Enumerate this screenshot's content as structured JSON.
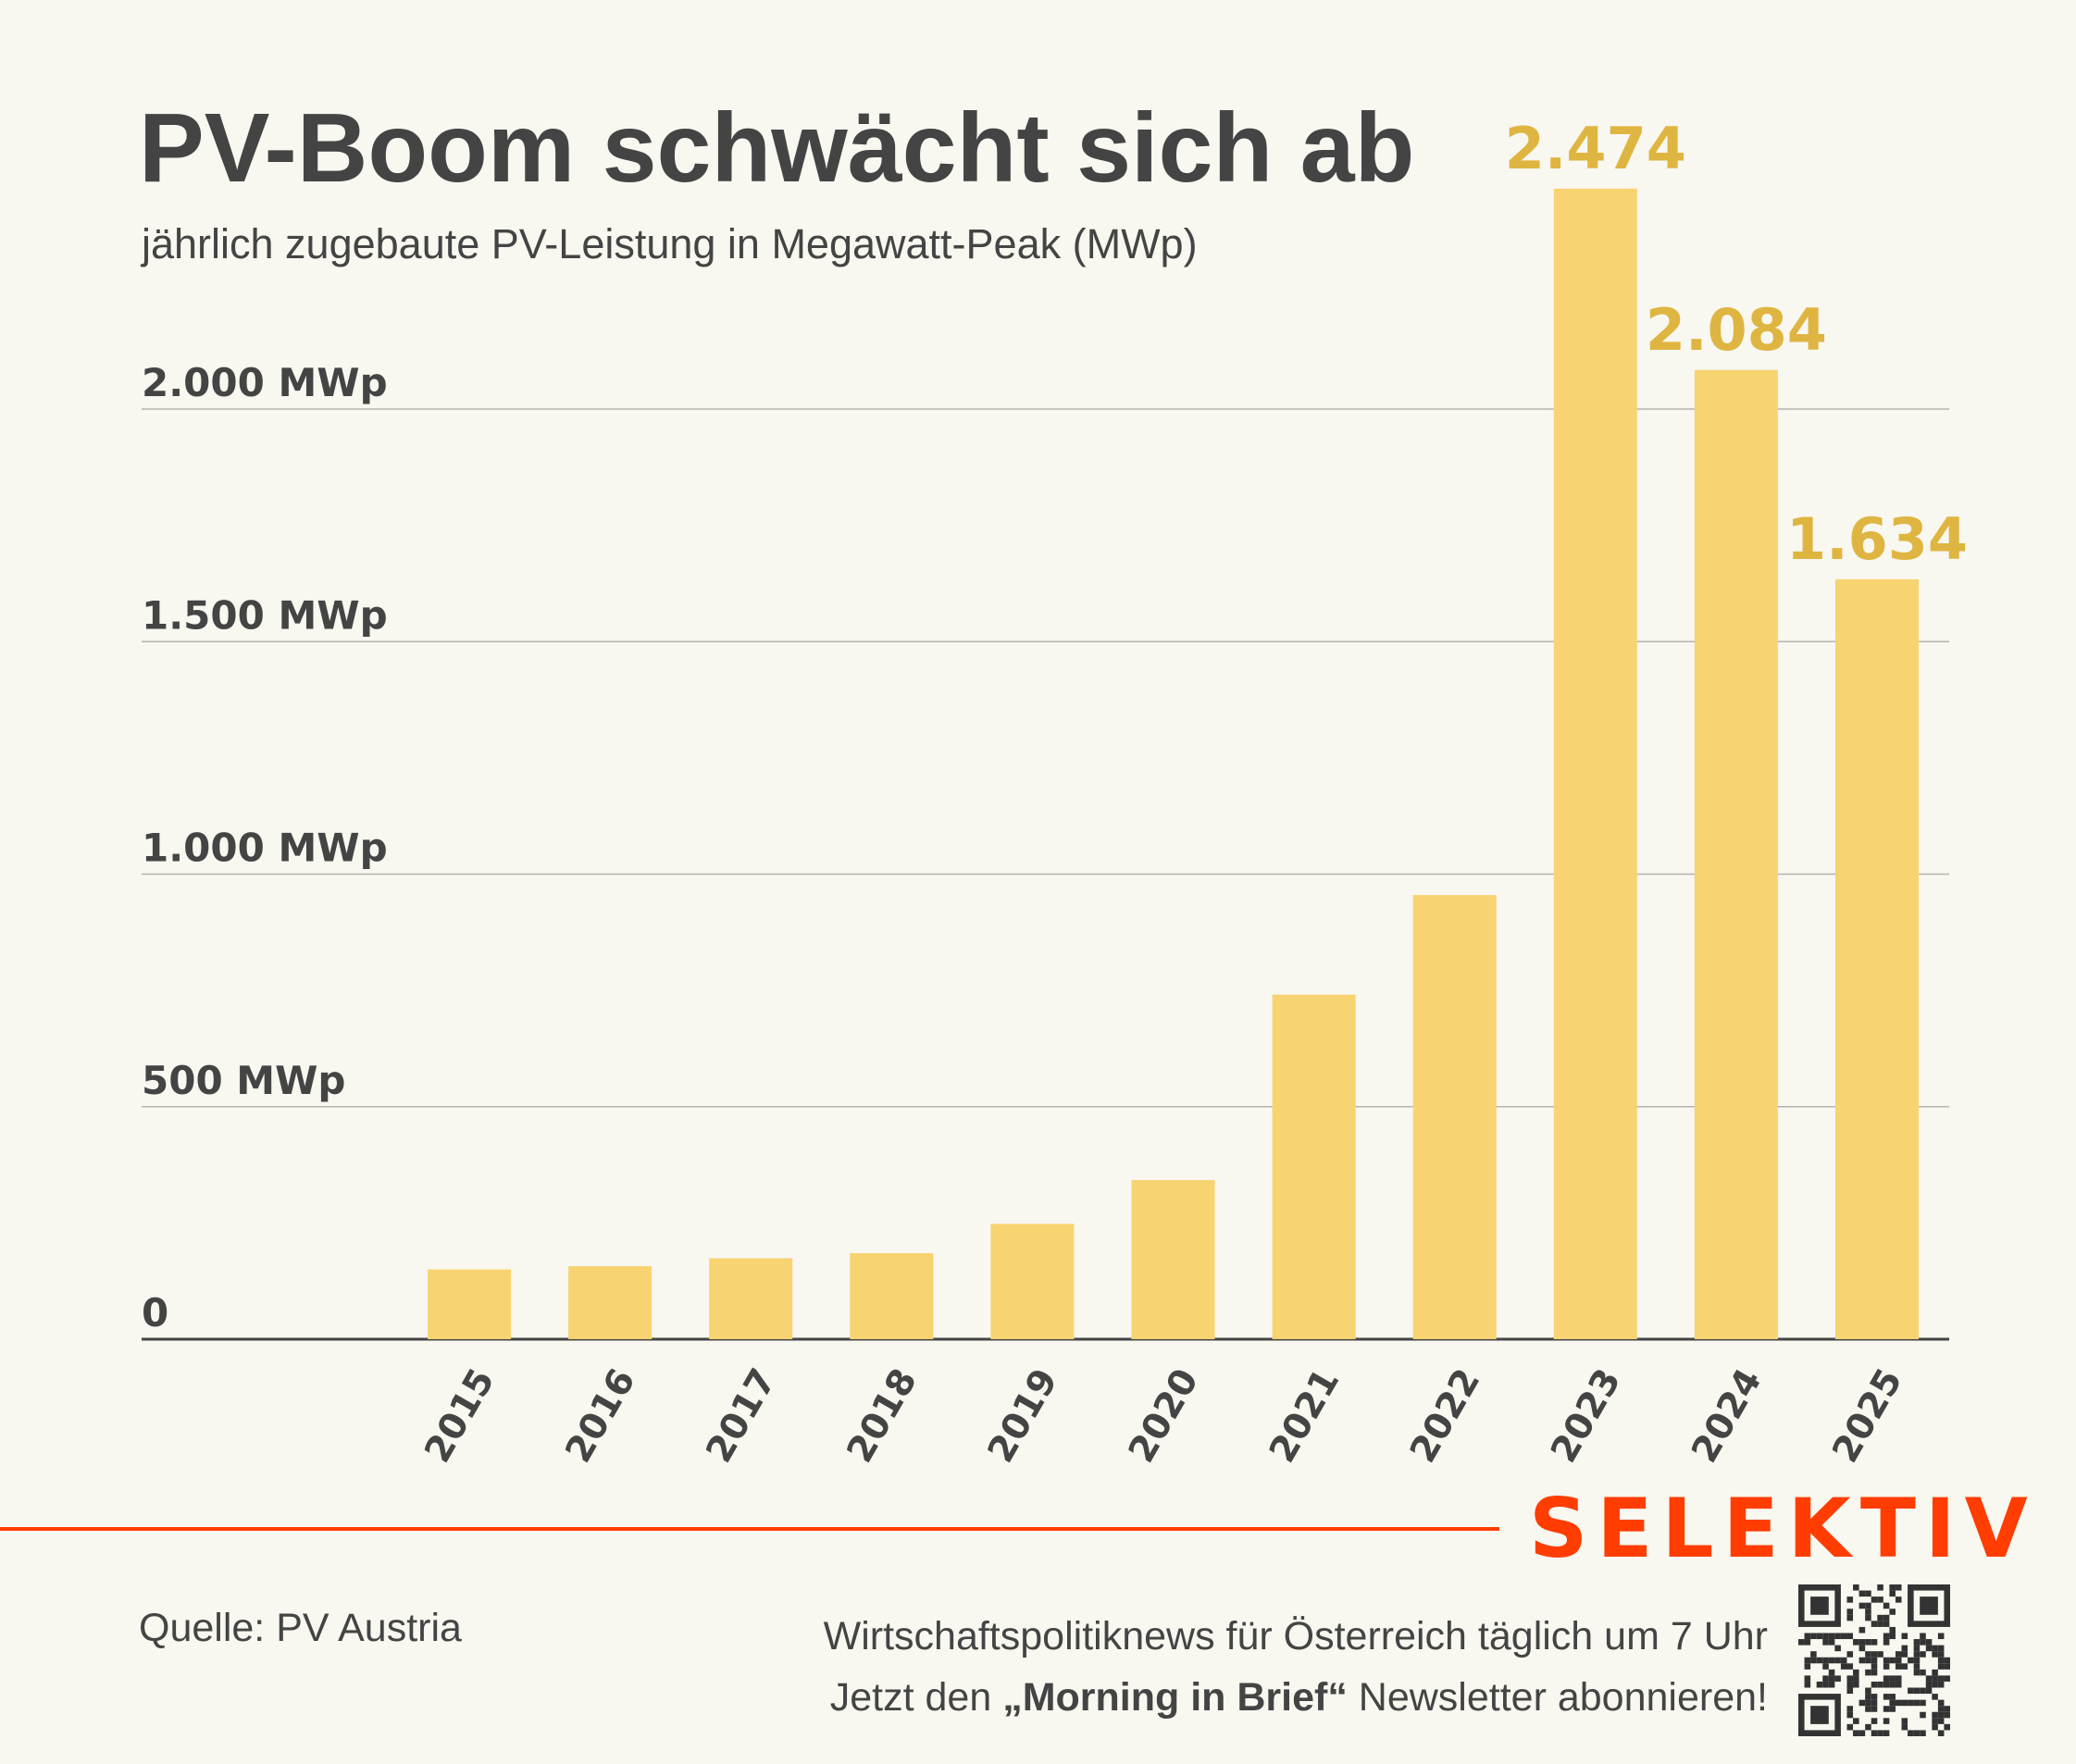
{
  "header": {
    "title": "PV-Boom schwächt sich ab",
    "subtitle": "jährlich zugebaute PV-Leistung in Megawatt-Peak (MWp)"
  },
  "chart_data": {
    "type": "bar",
    "title": "PV-Boom schwächt sich ab",
    "subtitle": "jährlich zugebaute PV-Leistung in Megawatt-Peak (MWp)",
    "xlabel": "",
    "ylabel": "",
    "categories": [
      "2015",
      "2016",
      "2017",
      "2018",
      "2019",
      "2020",
      "2021",
      "2022",
      "2023",
      "2024",
      "2025"
    ],
    "values": [
      150,
      157,
      174,
      185,
      248,
      342,
      741,
      955,
      2474,
      2084,
      1634
    ],
    "data_labels": {
      "2023": "2.474",
      "2024": "2.084",
      "2025": "1.634"
    },
    "ylim": [
      0,
      2500
    ],
    "yticks": [
      0,
      500,
      1000,
      1500,
      2000
    ],
    "ytick_labels": [
      "0",
      "500 MWp",
      "1.000 MWp",
      "1.500 MWp",
      "2.000 MWp"
    ],
    "grid": true,
    "legend": "none",
    "colors": {
      "bar": "#f8d371",
      "label": "#dfb541",
      "text": "#444444",
      "grid": "#aaaaaa"
    }
  },
  "footer": {
    "brand": "SELEKTIV",
    "source": "Quelle: PV Austria",
    "promo_line1": "Wirtschaftspolitiknews für Österreich täglich um 7 Uhr",
    "promo_line2_pre": "Jetzt den ",
    "promo_line2_bold": "„Morning in Brief“",
    "promo_line2_post": " Newsletter abonnieren!",
    "qr_icon": "qr-code-icon",
    "brand_color": "#ff3d00"
  }
}
